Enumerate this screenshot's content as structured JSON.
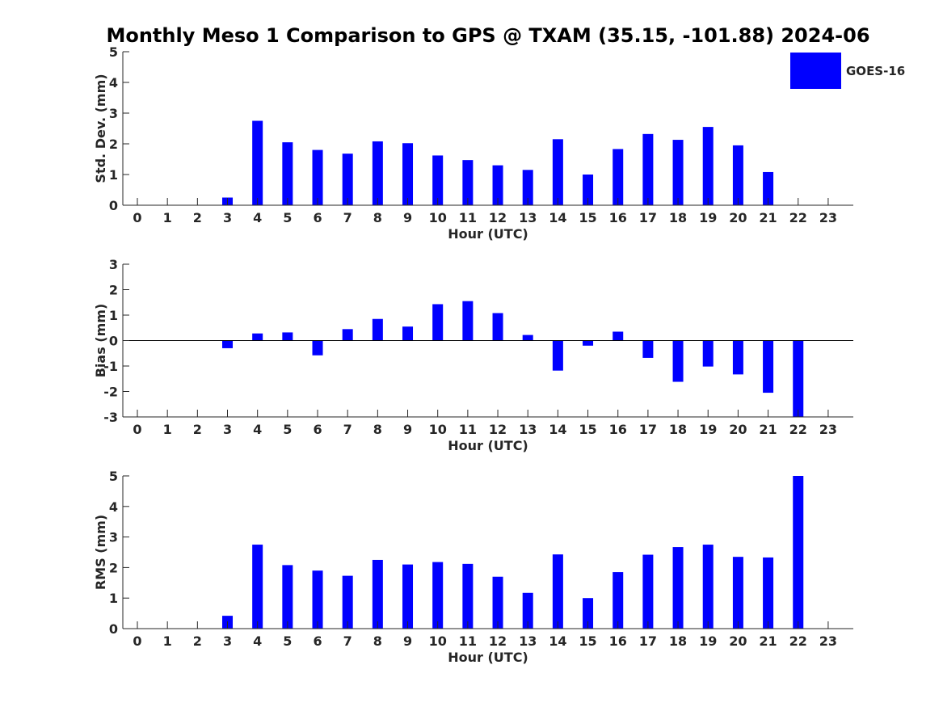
{
  "title": "Monthly Meso 1 Comparison to GPS @ TXAM (35.15, -101.88) 2024-06",
  "legend": {
    "label": "GOES-16",
    "color": "#0000ff",
    "position": "top-right"
  },
  "colors": {
    "bar": "#0000ff",
    "axis": "#262626",
    "background": "#ffffff"
  },
  "chart_data": [
    {
      "type": "bar",
      "id": "std",
      "xlabel": "Hour (UTC)",
      "ylabel": "Std. Dev. (mm)",
      "ylim": [
        0,
        5
      ],
      "yticks": [
        0,
        1,
        2,
        3,
        4,
        5
      ],
      "categories": [
        "0",
        "1",
        "2",
        "3",
        "4",
        "5",
        "6",
        "7",
        "8",
        "9",
        "10",
        "11",
        "12",
        "13",
        "14",
        "15",
        "16",
        "17",
        "18",
        "19",
        "20",
        "21",
        "22",
        "23"
      ],
      "values": [
        null,
        null,
        null,
        0.25,
        2.75,
        2.05,
        1.8,
        1.68,
        2.08,
        2.02,
        1.62,
        1.47,
        1.3,
        1.15,
        2.15,
        1.0,
        1.83,
        2.32,
        2.13,
        2.55,
        1.95,
        1.08,
        null,
        null
      ]
    },
    {
      "type": "bar",
      "id": "bias",
      "xlabel": "Hour (UTC)",
      "ylabel": "Bias (mm)",
      "ylim": [
        -3,
        3
      ],
      "yticks": [
        -3,
        -2,
        -1,
        0,
        1,
        2,
        3
      ],
      "categories": [
        "0",
        "1",
        "2",
        "3",
        "4",
        "5",
        "6",
        "7",
        "8",
        "9",
        "10",
        "11",
        "12",
        "13",
        "14",
        "15",
        "16",
        "17",
        "18",
        "19",
        "20",
        "21",
        "22",
        "23"
      ],
      "values": [
        null,
        null,
        null,
        -0.3,
        0.28,
        0.32,
        -0.58,
        0.45,
        0.85,
        0.55,
        1.43,
        1.55,
        1.08,
        0.22,
        -1.18,
        -0.2,
        0.35,
        -0.68,
        -1.62,
        -1.02,
        -1.33,
        -2.05,
        -3.0,
        null
      ]
    },
    {
      "type": "bar",
      "id": "rms",
      "xlabel": "Hour (UTC)",
      "ylabel": "RMS (mm)",
      "ylim": [
        0,
        5
      ],
      "yticks": [
        0,
        1,
        2,
        3,
        4,
        5
      ],
      "categories": [
        "0",
        "1",
        "2",
        "3",
        "4",
        "5",
        "6",
        "7",
        "8",
        "9",
        "10",
        "11",
        "12",
        "13",
        "14",
        "15",
        "16",
        "17",
        "18",
        "19",
        "20",
        "21",
        "22",
        "23"
      ],
      "values": [
        null,
        null,
        null,
        0.42,
        2.75,
        2.08,
        1.9,
        1.73,
        2.25,
        2.1,
        2.18,
        2.12,
        1.7,
        1.17,
        2.43,
        1.0,
        1.85,
        2.42,
        2.67,
        2.75,
        2.35,
        2.33,
        5.0,
        null
      ]
    }
  ]
}
